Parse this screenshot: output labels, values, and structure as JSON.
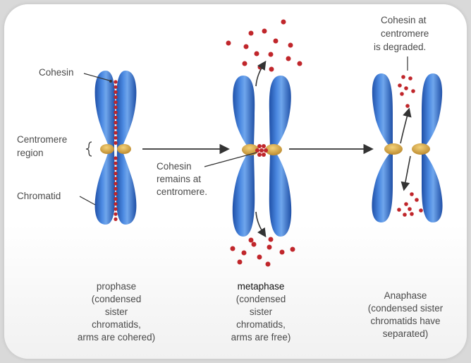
{
  "labels": {
    "cohesin": "Cohesin",
    "centromere_region": [
      "Centromere",
      "region"
    ],
    "chromatid": "Chromatid",
    "cohesin_remains": [
      "Cohesin",
      "remains at",
      "centromere."
    ],
    "cohesin_degraded": [
      "Cohesin at",
      "centromere",
      "is degraded."
    ]
  },
  "stages": [
    {
      "name": "prophase",
      "description": [
        "(condensed",
        "sister",
        "chromatids,",
        "arms are cohered)"
      ]
    },
    {
      "name": "metaphase",
      "description": [
        "(condensed",
        "sister",
        "chromatids,",
        "arms are free)"
      ]
    },
    {
      "name": "Anaphase",
      "description": [
        "(condensed sister",
        "chromatids have",
        "separated)"
      ]
    }
  ],
  "colors": {
    "chromatid": "#2f6fd0",
    "chromatid_light": "#6fa6ec",
    "chromatid_dark": "#1f4fa6",
    "centromere": "#d9a63a",
    "cohesin": "#c0262b",
    "arrow": "#333333"
  }
}
